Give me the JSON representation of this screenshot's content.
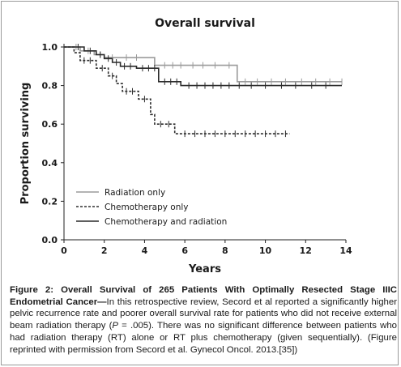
{
  "chart_data": {
    "type": "line",
    "title": "Overall survival",
    "xlabel": "Years",
    "ylabel": "Proportion surviving",
    "xlim": [
      0,
      14
    ],
    "ylim": [
      0.0,
      1.0
    ],
    "x_ticks": [
      "0",
      "2",
      "4",
      "6",
      "8",
      "10",
      "12",
      "14"
    ],
    "y_ticks": [
      "0.0",
      "0.2",
      "0.4",
      "0.6",
      "0.8",
      "1.0"
    ],
    "grid": false,
    "legend_position": "bottom-left",
    "series": [
      {
        "name": "Radiation only",
        "color": "#9b9b9b",
        "dash": "solid",
        "steps": [
          [
            0,
            1.0
          ],
          [
            0.8,
            0.98
          ],
          [
            1.5,
            0.96
          ],
          [
            2.0,
            0.945
          ],
          [
            4.5,
            0.905
          ],
          [
            8.6,
            0.82
          ],
          [
            13.8,
            0.82
          ]
        ],
        "censored": [
          [
            0.6,
            1.0
          ],
          [
            1.2,
            0.98
          ],
          [
            1.8,
            0.96
          ],
          [
            2.4,
            0.945
          ],
          [
            3.1,
            0.945
          ],
          [
            3.6,
            0.945
          ],
          [
            5.0,
            0.905
          ],
          [
            5.4,
            0.905
          ],
          [
            5.8,
            0.905
          ],
          [
            6.4,
            0.905
          ],
          [
            6.9,
            0.905
          ],
          [
            7.5,
            0.905
          ],
          [
            8.2,
            0.905
          ],
          [
            9.0,
            0.82
          ],
          [
            9.6,
            0.82
          ],
          [
            10.3,
            0.82
          ],
          [
            11.0,
            0.82
          ],
          [
            11.8,
            0.82
          ],
          [
            12.5,
            0.82
          ],
          [
            13.2,
            0.82
          ],
          [
            13.8,
            0.82
          ]
        ]
      },
      {
        "name": "Chemotherapy only",
        "color": "#2e2e2e",
        "dash": "dashed",
        "steps": [
          [
            0,
            1.0
          ],
          [
            0.5,
            0.97
          ],
          [
            0.8,
            0.93
          ],
          [
            1.6,
            0.89
          ],
          [
            2.2,
            0.85
          ],
          [
            2.6,
            0.81
          ],
          [
            2.9,
            0.77
          ],
          [
            3.7,
            0.73
          ],
          [
            4.3,
            0.65
          ],
          [
            4.5,
            0.6
          ],
          [
            5.5,
            0.55
          ],
          [
            11.2,
            0.55
          ]
        ],
        "censored": [
          [
            1.0,
            0.93
          ],
          [
            1.3,
            0.93
          ],
          [
            1.9,
            0.89
          ],
          [
            2.4,
            0.85
          ],
          [
            3.1,
            0.77
          ],
          [
            3.4,
            0.77
          ],
          [
            4.0,
            0.73
          ],
          [
            4.8,
            0.6
          ],
          [
            5.2,
            0.6
          ],
          [
            6.0,
            0.55
          ],
          [
            6.5,
            0.55
          ],
          [
            7.0,
            0.55
          ],
          [
            7.5,
            0.55
          ],
          [
            8.0,
            0.55
          ],
          [
            8.5,
            0.55
          ],
          [
            9.0,
            0.55
          ],
          [
            9.5,
            0.55
          ],
          [
            10.0,
            0.55
          ],
          [
            10.5,
            0.55
          ],
          [
            11.0,
            0.55
          ]
        ]
      },
      {
        "name": "Chemotherapy and radiation",
        "color": "#2a2a2a",
        "dash": "solid",
        "steps": [
          [
            0,
            1.0
          ],
          [
            1.0,
            0.98
          ],
          [
            1.6,
            0.96
          ],
          [
            2.0,
            0.94
          ],
          [
            2.4,
            0.92
          ],
          [
            2.8,
            0.9
          ],
          [
            3.6,
            0.89
          ],
          [
            4.7,
            0.82
          ],
          [
            5.8,
            0.8
          ],
          [
            13.8,
            0.8
          ]
        ],
        "censored": [
          [
            0.7,
            1.0
          ],
          [
            1.3,
            0.98
          ],
          [
            1.8,
            0.96
          ],
          [
            2.2,
            0.94
          ],
          [
            2.6,
            0.92
          ],
          [
            3.0,
            0.9
          ],
          [
            3.3,
            0.9
          ],
          [
            3.9,
            0.89
          ],
          [
            4.2,
            0.89
          ],
          [
            4.5,
            0.89
          ],
          [
            5.0,
            0.82
          ],
          [
            5.3,
            0.82
          ],
          [
            5.6,
            0.82
          ],
          [
            6.2,
            0.8
          ],
          [
            6.6,
            0.8
          ],
          [
            7.0,
            0.8
          ],
          [
            7.4,
            0.8
          ],
          [
            7.8,
            0.8
          ],
          [
            8.2,
            0.8
          ],
          [
            8.7,
            0.8
          ],
          [
            9.3,
            0.8
          ],
          [
            10.0,
            0.8
          ],
          [
            10.8,
            0.8
          ],
          [
            11.5,
            0.8
          ],
          [
            12.3,
            0.8
          ],
          [
            13.0,
            0.8
          ]
        ]
      }
    ]
  },
  "caption": {
    "label": "Figure 2: Overall Survival of 265 Patients With Optimally Resected Stage IIIC Endometrial Cancer—",
    "text_1": "In this retrospective review, Secord et al reported a significantly higher pelvic recurrence rate and poorer overall survival rate for patients who did not receive external beam radiation therapy (",
    "p_value": "P",
    "text_2": " = .005). There was no significant difference between patients who had radiation therapy (RT) alone or RT plus chemotherapy (given sequentially). (Figure reprinted with permission from Secord et al. Gynecol Oncol. 2013.[35])"
  }
}
